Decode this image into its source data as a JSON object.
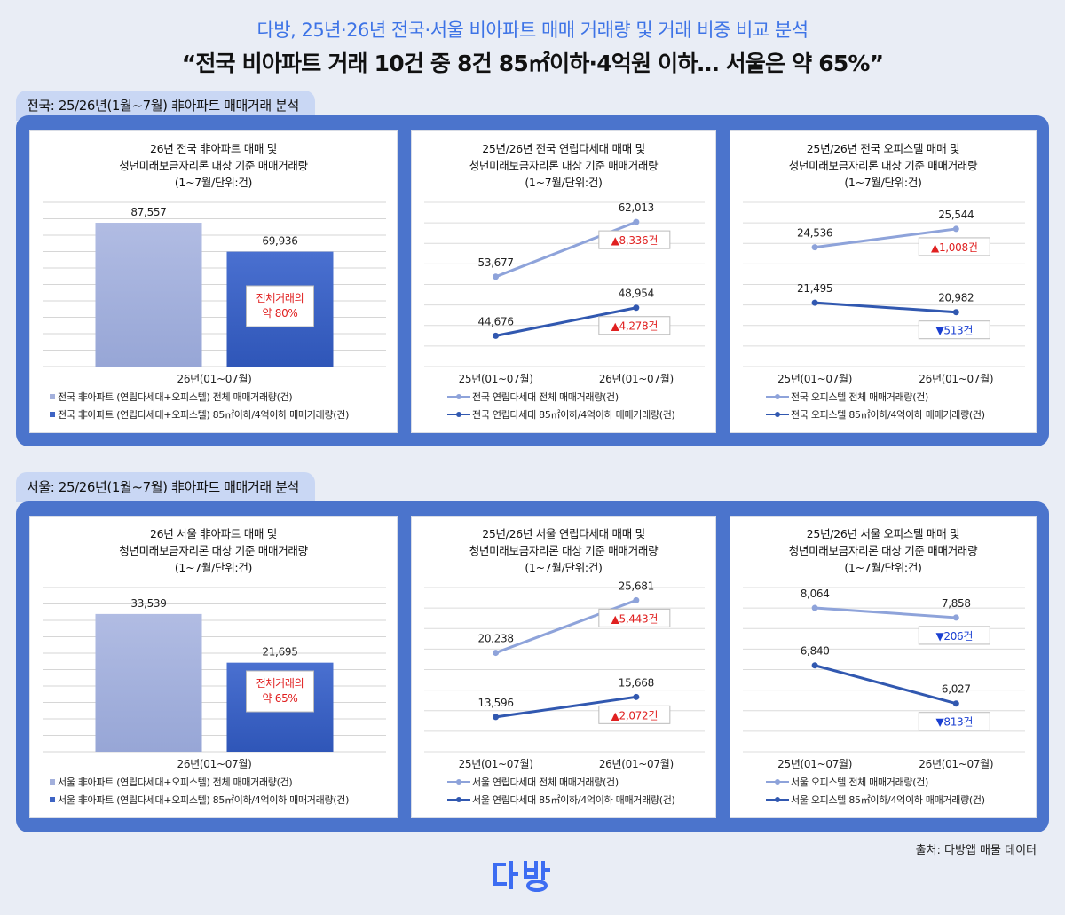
{
  "header": {
    "subtitle": "다방, 25년·26년 전국·서울 비아파트 매매 거래량 및 거래 비중 비교 분석",
    "title": "“전국 비아파트 거래 10건 중 8건 85㎡이하·4억원 이하… 서울은 약 65%”"
  },
  "sections": [
    {
      "tab_label": "전국: 25/26년(1월~7월) 非아파트 매매거래 분석",
      "cards": [
        {
          "title_lines": [
            "26년 전국 非아파트 매매 및",
            "청년미래보금자리론  대상 기준 매매거래량",
            "(1~7월/단위:건)"
          ],
          "chart_data": {
            "type": "bar",
            "categories": [
              "26년(01~07월)"
            ],
            "series": [
              {
                "name": "전국 非아파트 (연립다세대+오피스텔) 전체 매매거래량(건)",
                "values": [
                  87557
                ],
                "label": "87,557",
                "color": "#a3b0dc"
              },
              {
                "name": "전국 非아파트 (연립다세대+오피스텔) 85㎡이하/4억이하 매매거래량(건)",
                "values": [
                  69936
                ],
                "label": "69,936",
                "color": "#3e64c4"
              }
            ],
            "ylim": [
              0,
              100000
            ],
            "annotation": [
              "전체거래의",
              "약 80%"
            ]
          }
        },
        {
          "title_lines": [
            "25년/26년 전국 연립다세대  매매 및",
            "청년미래보금자리론  대상 기준 매매거래량",
            "(1~7월/단위:건)"
          ],
          "chart_data": {
            "type": "line",
            "categories": [
              "25년(01~07월)",
              "26년(01~07월)"
            ],
            "series": [
              {
                "name": "전국 연립다세대 전체 매매거래량(건)",
                "values": [
                  53677,
                  62013
                ],
                "labels": [
                  "53,677",
                  "62,013"
                ],
                "color": "#8ea3da",
                "change": "▲8,336건",
                "change_dir": "up"
              },
              {
                "name": "전국 연립다세대 85㎡이하/4억이하 매매거래량(건)",
                "values": [
                  44676,
                  48954
                ],
                "labels": [
                  "44,676",
                  "48,954"
                ],
                "color": "#3158b0",
                "change": "▲4,278건",
                "change_dir": "up"
              }
            ],
            "ylim": [
              40000,
              65000
            ]
          }
        },
        {
          "title_lines": [
            "25년/26년 전국 오피스텔  매매 및",
            "청년미래보금자리론  대상 기준 매매거래량",
            "(1~7월/단위:건)"
          ],
          "chart_data": {
            "type": "line",
            "categories": [
              "25년(01~07월)",
              "26년(01~07월)"
            ],
            "series": [
              {
                "name": "전국 오피스텔 전체 매매거래량(건)",
                "values": [
                  24536,
                  25544
                ],
                "labels": [
                  "24,536",
                  "25,544"
                ],
                "color": "#8ea3da",
                "change": "▲1,008건",
                "change_dir": "up"
              },
              {
                "name": "전국 오피스텔 85㎡이하/4억이하 매매거래량(건)",
                "values": [
                  21495,
                  20982
                ],
                "labels": [
                  "21,495",
                  "20,982"
                ],
                "color": "#3158b0",
                "change": "▼513건",
                "change_dir": "down"
              }
            ],
            "ylim": [
              18000,
              27000
            ]
          }
        }
      ]
    },
    {
      "tab_label": "서울: 25/26년(1월~7월) 非아파트 매매거래 분석",
      "cards": [
        {
          "title_lines": [
            "26년 서울 非아파트 매매 및",
            "청년미래보금자리론  대상 기준 매매거래량",
            "(1~7월/단위:건)"
          ],
          "chart_data": {
            "type": "bar",
            "categories": [
              "26년(01~07월)"
            ],
            "series": [
              {
                "name": "서울 非아파트 (연립다세대+오피스텔) 전체 매매거래량(건)",
                "values": [
                  33539
                ],
                "label": "33,539",
                "color": "#a3b0dc"
              },
              {
                "name": "서울 非아파트 (연립다세대+오피스텔) 85㎡이하/4억이하 매매거래량(건)",
                "values": [
                  21695
                ],
                "label": "21,695",
                "color": "#3e64c4"
              }
            ],
            "ylim": [
              0,
              40000
            ],
            "annotation": [
              "전체거래의",
              "약 65%"
            ]
          }
        },
        {
          "title_lines": [
            "25년/26년 서울 연립다세대  매매 및",
            "청년미래보금자리론  대상 기준 매매거래량",
            "(1~7월/단위:건)"
          ],
          "chart_data": {
            "type": "line",
            "categories": [
              "25년(01~07월)",
              "26년(01~07월)"
            ],
            "series": [
              {
                "name": "서울 연립다세대 전체 매매거래량(건)",
                "values": [
                  20238,
                  25681
                ],
                "labels": [
                  "20,238",
                  "25,681"
                ],
                "color": "#8ea3da",
                "change": "▲5,443건",
                "change_dir": "up"
              },
              {
                "name": "서울 연립다세대 85㎡이하/4억이하 매매거래량(건)",
                "values": [
                  13596,
                  15668
                ],
                "labels": [
                  "13,596",
                  "15,668"
                ],
                "color": "#3158b0",
                "change": "▲2,072건",
                "change_dir": "up"
              }
            ],
            "ylim": [
              10000,
              27000
            ]
          }
        },
        {
          "title_lines": [
            "25년/26년 서울 오피스텔  매매 및",
            "청년미래보금자리론  대상 기준 매매거래량",
            "(1~7월/단위:건)"
          ],
          "chart_data": {
            "type": "line",
            "categories": [
              "25년(01~07월)",
              "26년(01~07월)"
            ],
            "series": [
              {
                "name": "서울 오피스텔 전체 매매거래량(건)",
                "values": [
                  8064,
                  7858
                ],
                "labels": [
                  "8,064",
                  "7,858"
                ],
                "color": "#8ea3da",
                "change": "▼206건",
                "change_dir": "down"
              },
              {
                "name": "서울 오피스텔 85㎡이하/4억이하 매매거래량(건)",
                "values": [
                  6840,
                  6027
                ],
                "labels": [
                  "6,840",
                  "6,027"
                ],
                "color": "#3158b0",
                "change": "▼813건",
                "change_dir": "down"
              }
            ],
            "ylim": [
              5000,
              8500
            ]
          }
        }
      ]
    }
  ],
  "footer": {
    "source": "출처: 다방앱 매물 데이터",
    "logo_text": "다방"
  },
  "colors": {
    "up": "#e02020",
    "down": "#1a3fd1",
    "panel": "#4b74cc",
    "tab": "#c9d7f4"
  }
}
